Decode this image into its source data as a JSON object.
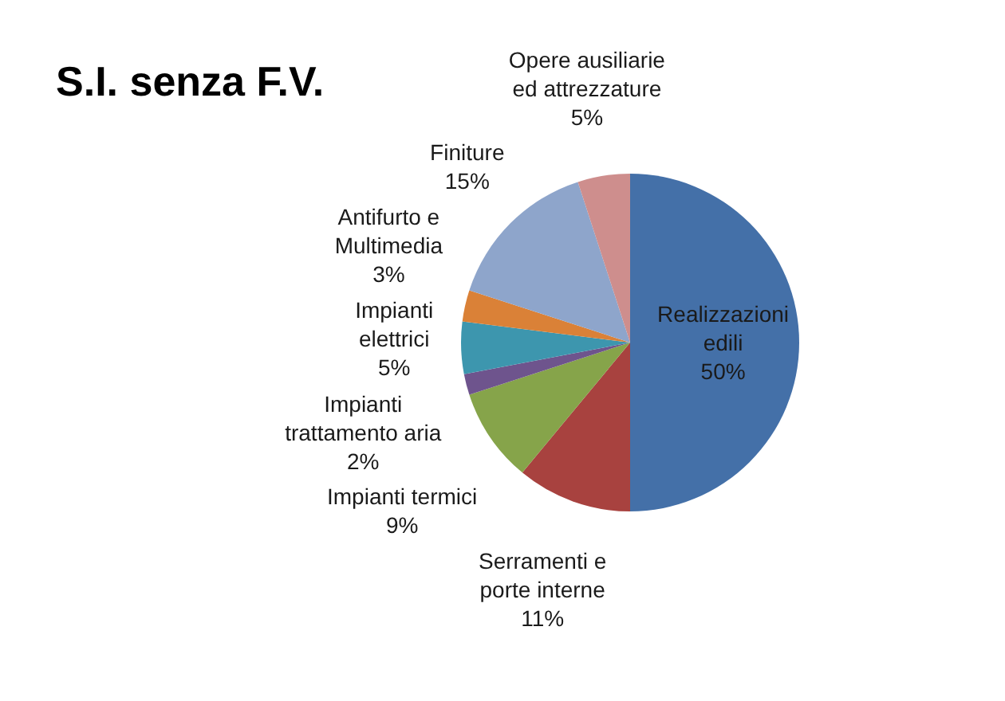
{
  "chart_data": {
    "type": "pie",
    "title": "S.I. senza F.V.",
    "categories": [
      "Realizzazioni edili",
      "Serramenti e porte interne",
      "Impianti termici",
      "Impianti trattamento aria",
      "Impianti elettrici",
      "Antifurto e Multimedia",
      "Finiture",
      "Opere ausiliarie ed attrezzature"
    ],
    "values": [
      50,
      11,
      9,
      2,
      5,
      3,
      15,
      5
    ],
    "value_labels": [
      "50%",
      "11%",
      "9%",
      "2%",
      "5%",
      "3%",
      "15%",
      "5%"
    ],
    "colors": [
      "#4470a8",
      "#a8423f",
      "#86a44a",
      "#6e548d",
      "#3d96ae",
      "#da8137",
      "#8ea5cb",
      "#ce8e8d"
    ]
  }
}
